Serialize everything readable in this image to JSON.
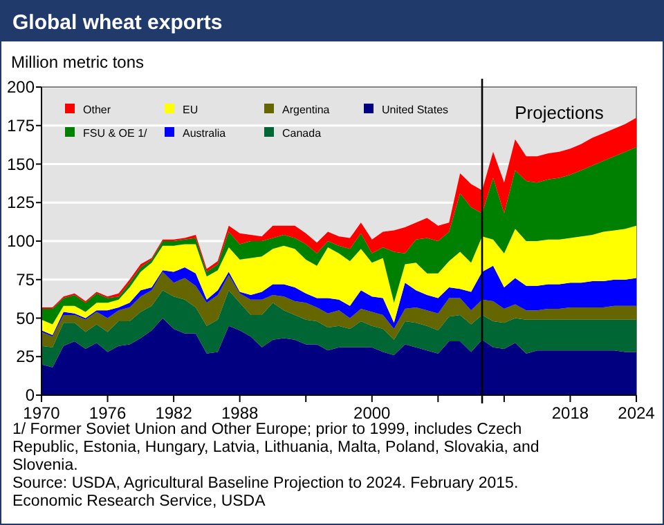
{
  "chart_data": {
    "type": "area",
    "stacked": true,
    "title": "Global wheat exports",
    "ylabel": "Million metric tons",
    "x": [
      1970,
      1971,
      1972,
      1973,
      1974,
      1975,
      1976,
      1977,
      1978,
      1979,
      1980,
      1981,
      1982,
      1983,
      1984,
      1985,
      1986,
      1987,
      1988,
      1989,
      1990,
      1991,
      1992,
      1993,
      1994,
      1995,
      1996,
      1997,
      1998,
      1999,
      2000,
      2001,
      2002,
      2003,
      2004,
      2005,
      2006,
      2007,
      2008,
      2009,
      2010,
      2011,
      2012,
      2013,
      2014,
      2015,
      2016,
      2017,
      2018,
      2019,
      2020,
      2021,
      2022,
      2023,
      2024
    ],
    "xlim": [
      1970,
      2024
    ],
    "xticks": [
      1970,
      1976,
      1982,
      1988,
      {
        "value": 1994,
        "label": null
      },
      2000,
      {
        "value": 2006,
        "label": null
      },
      {
        "value": 2012,
        "label": null
      },
      2018,
      2024
    ],
    "ylim": [
      0,
      200
    ],
    "yticks": [
      0,
      25,
      50,
      75,
      100,
      125,
      150,
      175,
      200
    ],
    "grid": "y",
    "legend": "top left",
    "series": [
      {
        "name": "United States",
        "color": "#000080",
        "values": [
          20,
          18,
          32,
          35,
          30,
          34,
          28,
          32,
          33,
          37,
          42,
          50,
          43,
          40,
          40,
          27,
          28,
          45,
          42,
          38,
          31,
          36,
          37,
          36,
          33,
          33,
          29,
          31,
          31,
          31,
          31,
          28,
          26,
          33,
          31,
          29,
          27,
          35,
          35,
          28,
          36,
          31,
          30,
          34,
          27,
          29,
          29,
          29,
          29,
          29,
          29,
          29,
          29,
          28,
          28
        ]
      },
      {
        "name": "Canada",
        "color": "#006633",
        "values": [
          12,
          13,
          15,
          12,
          11,
          12,
          13,
          16,
          15,
          17,
          16,
          18,
          21,
          22,
          17,
          18,
          21,
          23,
          18,
          14,
          21,
          24,
          18,
          16,
          16,
          15,
          15,
          14,
          12,
          17,
          14,
          15,
          10,
          15,
          16,
          16,
          15,
          16,
          17,
          18,
          16,
          17,
          17,
          16,
          22,
          20,
          20,
          20,
          20,
          20,
          20,
          20,
          20,
          21,
          21
        ]
      },
      {
        "name": "Argentina",
        "color": "#666600",
        "values": [
          9,
          7,
          5,
          5,
          8,
          8,
          9,
          7,
          9,
          10,
          10,
          12,
          9,
          14,
          14,
          15,
          16,
          10,
          6,
          10,
          10,
          5,
          9,
          9,
          11,
          9,
          9,
          10,
          7,
          8,
          9,
          9,
          7,
          8,
          10,
          10,
          11,
          12,
          11,
          9,
          10,
          13,
          9,
          9,
          6,
          6,
          7,
          7,
          8,
          8,
          8,
          8,
          9,
          9,
          9
        ]
      },
      {
        "name": "Australia",
        "color": "#0000ff",
        "values": [
          1,
          1,
          2,
          1,
          1,
          1,
          5,
          2,
          3,
          4,
          2,
          1,
          7,
          7,
          8,
          2,
          3,
          2,
          1,
          3,
          5,
          7,
          8,
          9,
          6,
          6,
          10,
          7,
          8,
          12,
          10,
          11,
          4,
          17,
          11,
          10,
          10,
          7,
          6,
          12,
          18,
          23,
          14,
          17,
          16,
          16,
          16,
          16,
          16,
          16,
          17,
          17,
          17,
          17,
          18
        ]
      },
      {
        "name": "EU",
        "color": "#ffff00",
        "values": [
          7,
          7,
          4,
          5,
          4,
          5,
          5,
          5,
          10,
          12,
          16,
          16,
          17,
          15,
          19,
          15,
          13,
          16,
          21,
          24,
          23,
          23,
          25,
          25,
          22,
          21,
          33,
          30,
          29,
          27,
          22,
          26,
          13,
          12,
          18,
          14,
          16,
          17,
          24,
          19,
          23,
          17,
          22,
          32,
          29,
          29,
          29,
          29,
          29,
          30,
          30,
          32,
          32,
          33,
          34
        ]
      },
      {
        "name": "FSU & OE 1/",
        "color": "#008000",
        "values": [
          7,
          10,
          5,
          7,
          6,
          6,
          3,
          2,
          3,
          3,
          2,
          3,
          3,
          3,
          4,
          3,
          4,
          10,
          10,
          11,
          10,
          7,
          7,
          7,
          10,
          8,
          4,
          5,
          8,
          10,
          6,
          7,
          33,
          7,
          15,
          23,
          21,
          19,
          38,
          36,
          15,
          40,
          26,
          38,
          39,
          38,
          39,
          40,
          41,
          43,
          45,
          46,
          48,
          50,
          51
        ]
      },
      {
        "name": "Other",
        "color": "#ff0000",
        "values": [
          1,
          1,
          1,
          1,
          1,
          1,
          1,
          2,
          2,
          2,
          1,
          1,
          1,
          1,
          2,
          2,
          2,
          4,
          7,
          4,
          3,
          8,
          6,
          8,
          7,
          7,
          6,
          6,
          7,
          7,
          9,
          10,
          14,
          17,
          11,
          13,
          10,
          6,
          13,
          15,
          15,
          17,
          20,
          20,
          16,
          17,
          17,
          17,
          17,
          17,
          18,
          18,
          18,
          18,
          19
        ]
      }
    ],
    "ref_lines": [
      {
        "axis": "x",
        "value": 2010,
        "label": "Projections",
        "color": "#000000"
      }
    ],
    "annotations": [
      "1/ Former Soviet Union and Other Europe; prior to 1999, includes Czech Republic, Estonia, Hungary, Latvia, Lithuania, Malta, Poland, Slovakia, and Slovenia.",
      "Source: USDA, Agricultural Baseline Projection to 2024. February 2015.  Economic Research Service, USDA"
    ]
  }
}
